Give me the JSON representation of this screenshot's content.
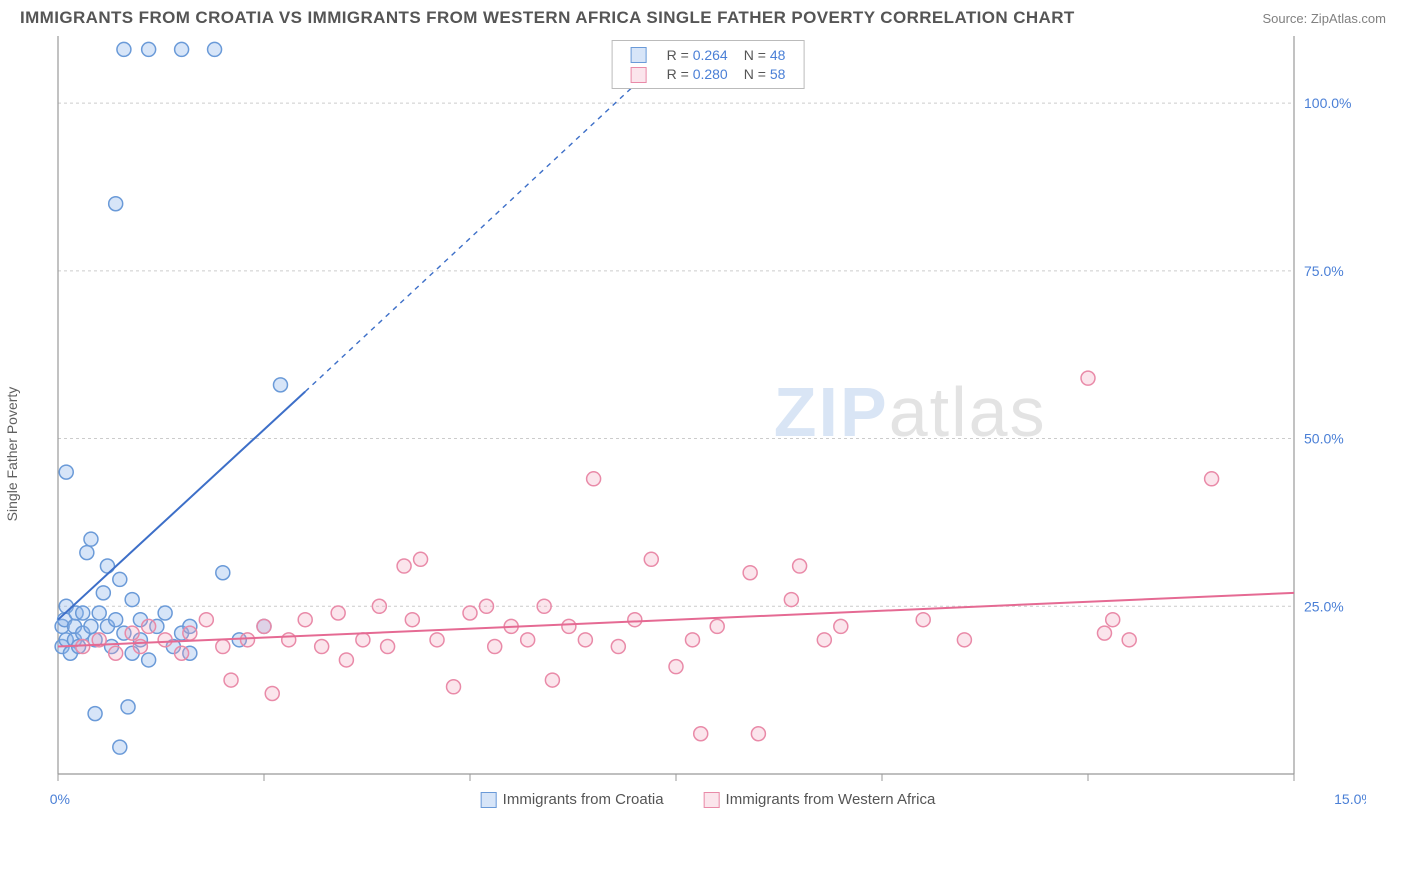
{
  "title": "IMMIGRANTS FROM CROATIA VS IMMIGRANTS FROM WESTERN AFRICA SINGLE FATHER POVERTY CORRELATION CHART",
  "source_label": "Source: ",
  "source_name": "ZipAtlas.com",
  "ylabel": "Single Father Poverty",
  "watermark_a": "ZIP",
  "watermark_b": "atlas",
  "chart": {
    "type": "scatter",
    "background_color": "#ffffff",
    "grid_color": "#cccccc",
    "axis_color": "#999999",
    "tick_font_color": "#4a7fd6",
    "tick_fontsize": 14,
    "xlim": [
      0,
      15
    ],
    "ylim": [
      0,
      110
    ],
    "xticks": [
      0,
      2.5,
      5,
      7.5,
      10,
      12.5,
      15
    ],
    "xtick_labels": [
      "0.0%",
      "",
      "",
      "",
      "",
      "",
      "15.0%"
    ],
    "yticks": [
      25,
      50,
      75,
      100
    ],
    "ytick_labels": [
      "25.0%",
      "50.0%",
      "75.0%",
      "100.0%"
    ],
    "marker_radius": 7,
    "marker_stroke_width": 1.5,
    "trend_line_width": 2,
    "series": [
      {
        "name": "Immigrants from Croatia",
        "fill": "rgba(140,180,235,0.35)",
        "stroke": "#6a9ad8",
        "trend_color": "#3d6fc8",
        "R": "0.264",
        "N": "48",
        "trend": {
          "x1": 0,
          "y1": 23,
          "x2_solid": 3.0,
          "y2_solid": 57,
          "x2_dash": 7.2,
          "y2_dash": 105
        },
        "points": [
          [
            0.05,
            19
          ],
          [
            0.05,
            22
          ],
          [
            0.08,
            23
          ],
          [
            0.1,
            20
          ],
          [
            0.1,
            25
          ],
          [
            0.1,
            45
          ],
          [
            0.8,
            108
          ],
          [
            1.1,
            108
          ],
          [
            1.5,
            108
          ],
          [
            1.9,
            108
          ],
          [
            0.7,
            85
          ],
          [
            0.15,
            18
          ],
          [
            0.2,
            20
          ],
          [
            0.2,
            22
          ],
          [
            0.22,
            24
          ],
          [
            0.25,
            19
          ],
          [
            0.3,
            21
          ],
          [
            0.3,
            24
          ],
          [
            0.35,
            33
          ],
          [
            0.4,
            35
          ],
          [
            0.4,
            22
          ],
          [
            0.45,
            20
          ],
          [
            0.5,
            24
          ],
          [
            0.55,
            27
          ],
          [
            0.6,
            31
          ],
          [
            0.6,
            22
          ],
          [
            0.65,
            19
          ],
          [
            0.7,
            23
          ],
          [
            0.75,
            29
          ],
          [
            2.7,
            58
          ],
          [
            0.8,
            21
          ],
          [
            0.85,
            10
          ],
          [
            0.9,
            18
          ],
          [
            0.9,
            26
          ],
          [
            1.0,
            20
          ],
          [
            1.0,
            23
          ],
          [
            1.1,
            17
          ],
          [
            1.2,
            22
          ],
          [
            1.3,
            24
          ],
          [
            1.4,
            19
          ],
          [
            1.5,
            21
          ],
          [
            1.6,
            18
          ],
          [
            1.6,
            22
          ],
          [
            2.0,
            30
          ],
          [
            2.2,
            20
          ],
          [
            2.5,
            22
          ],
          [
            0.75,
            4
          ],
          [
            0.45,
            9
          ]
        ]
      },
      {
        "name": "Immigrants from Western Africa",
        "fill": "rgba(240,160,185,0.28)",
        "stroke": "#e98aa8",
        "trend_color": "#e56a93",
        "R": "0.280",
        "N": "58",
        "trend": {
          "x1": 0,
          "y1": 19,
          "x2_solid": 15,
          "y2_solid": 27,
          "x2_dash": 15,
          "y2_dash": 27
        },
        "points": [
          [
            0.3,
            19
          ],
          [
            0.5,
            20
          ],
          [
            0.7,
            18
          ],
          [
            0.9,
            21
          ],
          [
            1.0,
            19
          ],
          [
            1.1,
            22
          ],
          [
            1.3,
            20
          ],
          [
            1.5,
            18
          ],
          [
            1.6,
            21
          ],
          [
            1.8,
            23
          ],
          [
            2.0,
            19
          ],
          [
            2.1,
            14
          ],
          [
            2.3,
            20
          ],
          [
            2.5,
            22
          ],
          [
            2.6,
            12
          ],
          [
            2.8,
            20
          ],
          [
            3.0,
            23
          ],
          [
            3.2,
            19
          ],
          [
            3.4,
            24
          ],
          [
            3.5,
            17
          ],
          [
            3.7,
            20
          ],
          [
            3.9,
            25
          ],
          [
            4.0,
            19
          ],
          [
            4.2,
            31
          ],
          [
            4.3,
            23
          ],
          [
            4.4,
            32
          ],
          [
            4.6,
            20
          ],
          [
            4.8,
            13
          ],
          [
            5.0,
            24
          ],
          [
            5.2,
            25
          ],
          [
            5.3,
            19
          ],
          [
            5.5,
            22
          ],
          [
            5.7,
            20
          ],
          [
            5.9,
            25
          ],
          [
            6.0,
            14
          ],
          [
            6.2,
            22
          ],
          [
            6.4,
            20
          ],
          [
            6.5,
            44
          ],
          [
            6.8,
            19
          ],
          [
            7.0,
            23
          ],
          [
            7.2,
            32
          ],
          [
            7.5,
            16
          ],
          [
            7.7,
            20
          ],
          [
            7.8,
            6
          ],
          [
            8.0,
            22
          ],
          [
            8.4,
            30
          ],
          [
            8.5,
            6
          ],
          [
            8.9,
            26
          ],
          [
            9.0,
            31
          ],
          [
            9.3,
            20
          ],
          [
            9.5,
            22
          ],
          [
            10.5,
            23
          ],
          [
            11.0,
            20
          ],
          [
            12.5,
            59
          ],
          [
            12.7,
            21
          ],
          [
            12.8,
            23
          ],
          [
            13.0,
            20
          ],
          [
            14.0,
            44
          ]
        ]
      }
    ]
  },
  "legend_bottom": [
    {
      "label": "Immigrants from Croatia",
      "fill": "rgba(140,180,235,0.35)",
      "stroke": "#6a9ad8"
    },
    {
      "label": "Immigrants from Western Africa",
      "fill": "rgba(240,160,185,0.28)",
      "stroke": "#e98aa8"
    }
  ]
}
